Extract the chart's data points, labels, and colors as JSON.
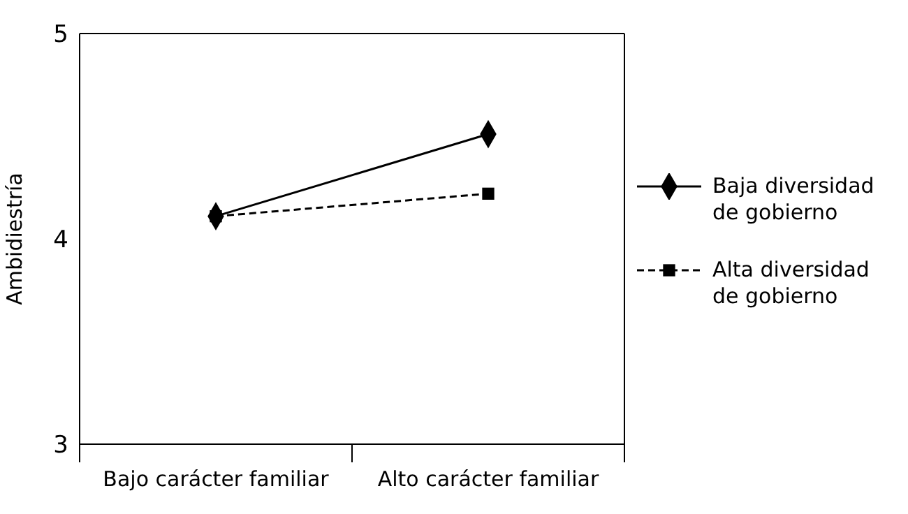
{
  "chart_data": {
    "type": "line",
    "ylabel": "Ambidiestría",
    "categories": [
      "Bajo carácter familiar",
      "Alto carácter familiar"
    ],
    "series": [
      {
        "name": "Baja diversidad de gobierno",
        "color": "#000000",
        "values": [
          4.11,
          4.51
        ],
        "marker": "diamond",
        "line_style": "solid"
      },
      {
        "name": "Alta diversidad de gobierno",
        "color": "#000000",
        "values": [
          4.11,
          4.22
        ],
        "marker": "square",
        "line_style": "dashed"
      }
    ],
    "ylim": [
      3,
      5
    ],
    "yticks": [
      3,
      4,
      5
    ],
    "legend": "right"
  }
}
